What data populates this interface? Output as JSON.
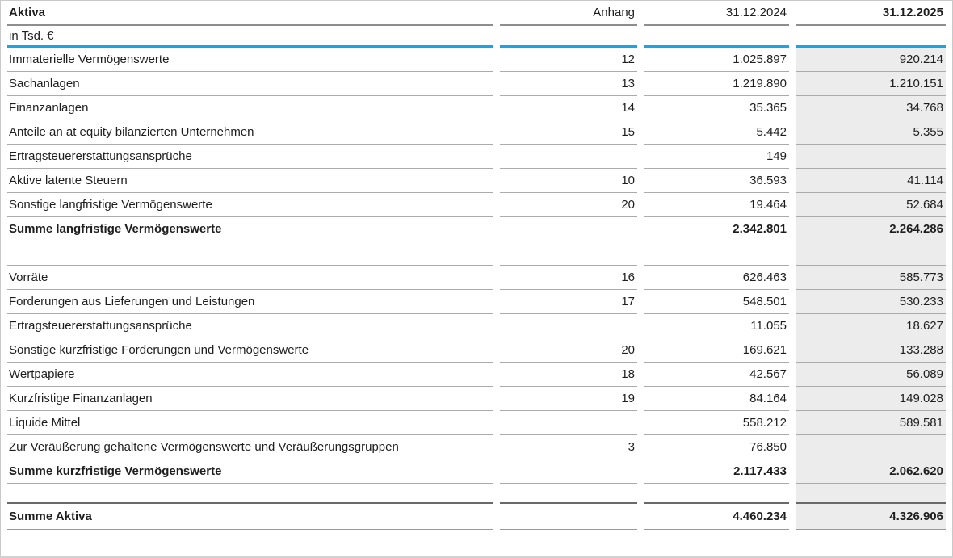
{
  "theme": {
    "accent_blue": "#1ba4e2",
    "highlight_column_bg": "#ececec",
    "row_border": "#ababab",
    "header_border": "#8e8e8e",
    "dark_divider": "#696969",
    "frame_border": "#c9c9c9",
    "text_color": "#1e1e1e"
  },
  "table": {
    "title_column": "Aktiva",
    "unit_label": "in Tsd. €",
    "columns": {
      "label": "Aktiva",
      "anhang": "Anhang",
      "y2024": "31.12.2024",
      "y2025": "31.12.2025"
    },
    "rows": [
      {
        "type": "data",
        "label": "Immaterielle Vermögenswerte",
        "anhang": "12",
        "y2024": "1.025.897",
        "y2025": "920.214"
      },
      {
        "type": "data",
        "label": "Sachanlagen",
        "anhang": "13",
        "y2024": "1.219.890",
        "y2025": "1.210.151"
      },
      {
        "type": "data",
        "label": "Finanzanlagen",
        "anhang": "14",
        "y2024": "35.365",
        "y2025": "34.768"
      },
      {
        "type": "data",
        "label": "Anteile an at equity bilanzierten Unternehmen",
        "anhang": "15",
        "y2024": "5.442",
        "y2025": "5.355"
      },
      {
        "type": "data",
        "label": "Ertragsteuererstattungsansprüche",
        "anhang": "",
        "y2024": "149",
        "y2025": ""
      },
      {
        "type": "data",
        "label": "Aktive latente Steuern",
        "anhang": "10",
        "y2024": "36.593",
        "y2025": "41.114"
      },
      {
        "type": "data",
        "label": "Sonstige langfristige Vermögenswerte",
        "anhang": "20",
        "y2024": "19.464",
        "y2025": "52.684"
      },
      {
        "type": "total",
        "label": "Summe langfristige Vermögenswerte",
        "anhang": "",
        "y2024": "2.342.801",
        "y2025": "2.264.286"
      },
      {
        "type": "spacer",
        "label": "",
        "anhang": "",
        "y2024": "",
        "y2025": ""
      },
      {
        "type": "data",
        "label": "Vorräte",
        "anhang": "16",
        "y2024": "626.463",
        "y2025": "585.773"
      },
      {
        "type": "data",
        "label": "Forderungen aus Lieferungen und Leistungen",
        "anhang": "17",
        "y2024": "548.501",
        "y2025": "530.233"
      },
      {
        "type": "data",
        "label": "Ertragsteuererstattungsansprüche",
        "anhang": "",
        "y2024": "11.055",
        "y2025": "18.627"
      },
      {
        "type": "data",
        "label": "Sonstige kurzfristige Forderungen und Vermögenswerte",
        "anhang": "20",
        "y2024": "169.621",
        "y2025": "133.288"
      },
      {
        "type": "data",
        "label": "Wertpapiere",
        "anhang": "18",
        "y2024": "42.567",
        "y2025": "56.089"
      },
      {
        "type": "data",
        "label": "Kurzfristige Finanzanlagen",
        "anhang": "19",
        "y2024": "84.164",
        "y2025": "149.028"
      },
      {
        "type": "data",
        "label": "Liquide Mittel",
        "anhang": "",
        "y2024": "558.212",
        "y2025": "589.581"
      },
      {
        "type": "data",
        "label": "Zur Veräußerung gehaltene Vermögenswerte und Veräußerungsgruppen",
        "anhang": "3",
        "y2024": "76.850",
        "y2025": ""
      },
      {
        "type": "total",
        "label": "Summe kurzfristige Vermögenswerte",
        "anhang": "",
        "y2024": "2.117.433",
        "y2025": "2.062.620"
      },
      {
        "type": "spacer-dark",
        "label": "",
        "anhang": "",
        "y2024": "",
        "y2025": ""
      },
      {
        "type": "grand",
        "label": "Summe Aktiva",
        "anhang": "",
        "y2024": "4.460.234",
        "y2025": "4.326.906"
      }
    ]
  }
}
